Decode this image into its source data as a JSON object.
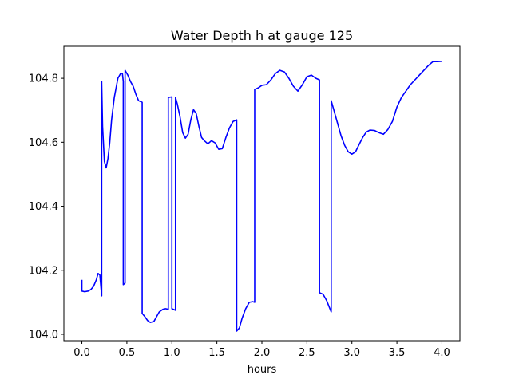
{
  "chart_data": {
    "type": "line",
    "title": "Water Depth h at gauge 125",
    "xlabel": "hours",
    "ylabel": "",
    "xlim": [
      -0.2,
      4.2
    ],
    "ylim": [
      103.98,
      104.9
    ],
    "xticks": [
      0.0,
      0.5,
      1.0,
      1.5,
      2.0,
      2.5,
      3.0,
      3.5,
      4.0
    ],
    "xtick_labels": [
      "0.0",
      "0.5",
      "1.0",
      "1.5",
      "2.0",
      "2.5",
      "3.0",
      "3.5",
      "4.0"
    ],
    "yticks": [
      104.0,
      104.2,
      104.4,
      104.6,
      104.8
    ],
    "ytick_labels": [
      "104.0",
      "104.2",
      "104.4",
      "104.6",
      "104.8"
    ],
    "grid": false,
    "series": [
      {
        "color": "#0000ff",
        "x": [
          0.0,
          0.0,
          0.03,
          0.07,
          0.1,
          0.13,
          0.16,
          0.18,
          0.2,
          0.22,
          0.22,
          0.23,
          0.25,
          0.27,
          0.29,
          0.31,
          0.33,
          0.36,
          0.4,
          0.43,
          0.45,
          0.46,
          0.46,
          0.48,
          0.48,
          0.49,
          0.51,
          0.54,
          0.57,
          0.6,
          0.63,
          0.67,
          0.67,
          0.7,
          0.73,
          0.76,
          0.8,
          0.83,
          0.86,
          0.9,
          0.93,
          0.96,
          0.96,
          1.0,
          1.0,
          1.04,
          1.04,
          1.06,
          1.09,
          1.12,
          1.15,
          1.18,
          1.21,
          1.24,
          1.27,
          1.3,
          1.33,
          1.36,
          1.4,
          1.44,
          1.48,
          1.52,
          1.56,
          1.6,
          1.64,
          1.68,
          1.72,
          1.72,
          1.75,
          1.78,
          1.82,
          1.86,
          1.9,
          1.92,
          1.92,
          1.96,
          2.0,
          2.05,
          2.1,
          2.15,
          2.2,
          2.25,
          2.3,
          2.35,
          2.4,
          2.45,
          2.5,
          2.55,
          2.6,
          2.64,
          2.64,
          2.68,
          2.72,
          2.77,
          2.77,
          2.8,
          2.84,
          2.88,
          2.92,
          2.96,
          3.0,
          3.04,
          3.08,
          3.12,
          3.16,
          3.2,
          3.25,
          3.3,
          3.35,
          3.4,
          3.45,
          3.5,
          3.55,
          3.6,
          3.65,
          3.7,
          3.75,
          3.8,
          3.85,
          3.9,
          3.95,
          4.0
        ],
        "y": [
          104.17,
          104.135,
          104.133,
          104.135,
          104.14,
          104.15,
          104.17,
          104.19,
          104.185,
          104.12,
          104.79,
          104.65,
          104.54,
          104.52,
          104.55,
          104.6,
          104.67,
          104.74,
          104.8,
          104.815,
          104.815,
          104.79,
          104.155,
          104.16,
          104.825,
          104.82,
          104.81,
          104.79,
          104.775,
          104.75,
          104.73,
          104.725,
          104.065,
          104.055,
          104.043,
          104.037,
          104.04,
          104.055,
          104.07,
          104.078,
          104.08,
          104.078,
          104.74,
          104.742,
          104.08,
          104.075,
          104.74,
          104.72,
          104.68,
          104.63,
          104.613,
          104.625,
          104.67,
          104.702,
          104.69,
          104.65,
          104.615,
          104.605,
          104.595,
          104.605,
          104.598,
          104.578,
          104.58,
          104.615,
          104.645,
          104.665,
          104.67,
          104.01,
          104.02,
          104.05,
          104.08,
          104.1,
          104.102,
          104.1,
          104.765,
          104.77,
          104.778,
          104.78,
          104.795,
          104.815,
          104.825,
          104.82,
          104.8,
          104.775,
          104.76,
          104.78,
          104.805,
          104.81,
          104.8,
          104.795,
          104.13,
          104.125,
          104.105,
          104.07,
          104.73,
          104.7,
          104.66,
          104.62,
          104.59,
          104.57,
          104.563,
          104.57,
          104.593,
          104.615,
          104.632,
          104.638,
          104.637,
          104.63,
          104.625,
          104.64,
          104.665,
          104.71,
          104.74,
          104.76,
          104.78,
          104.795,
          104.81,
          104.825,
          104.84,
          104.852,
          104.852,
          104.853
        ]
      }
    ]
  }
}
